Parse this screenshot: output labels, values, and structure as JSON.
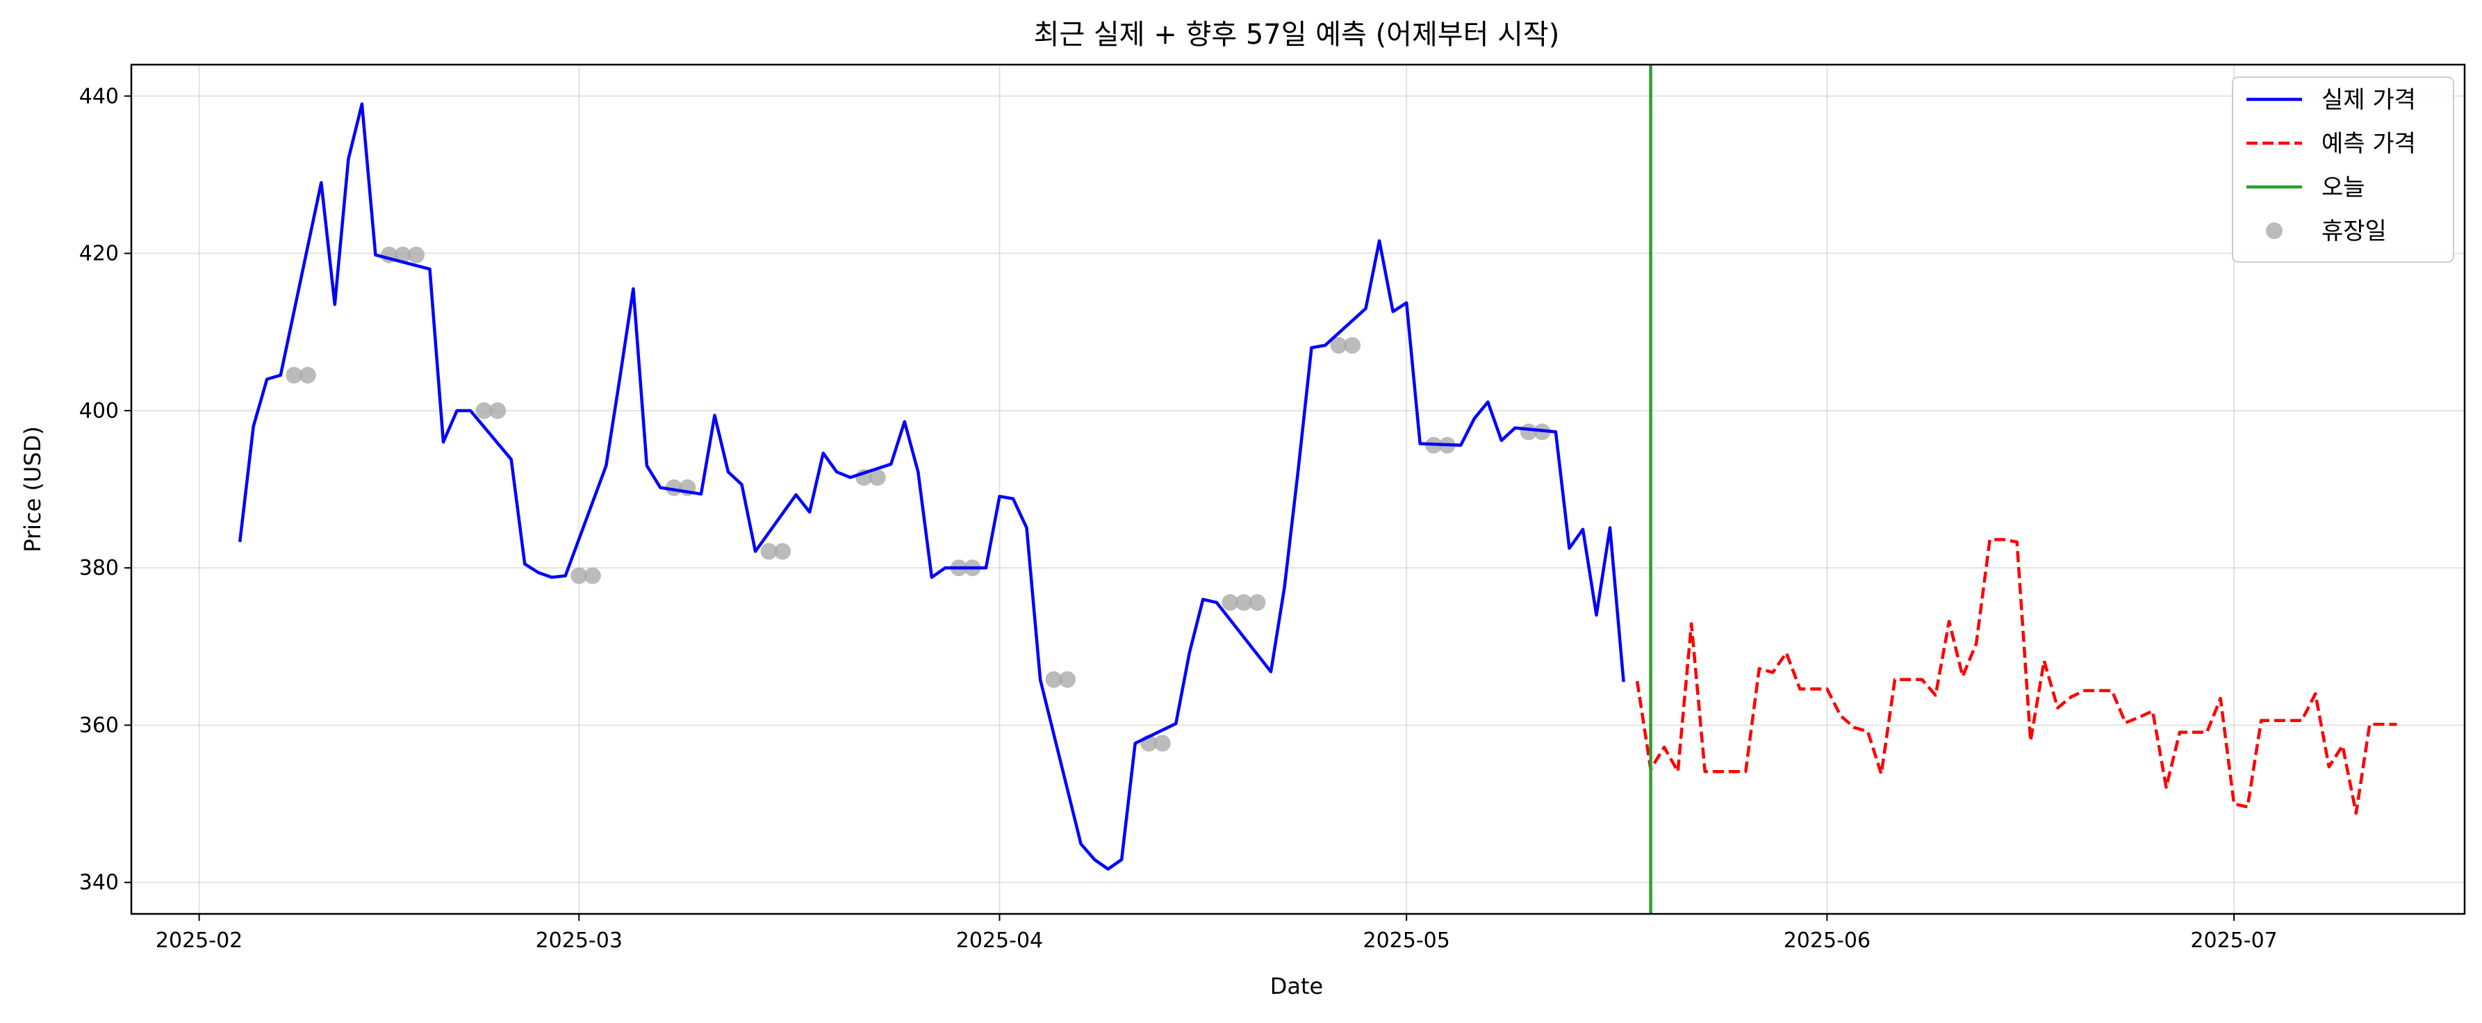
{
  "chart_data": {
    "type": "line",
    "title": "최근 실제 + 향후 57일 예측 (어제부터 시작)",
    "xlabel": "Date",
    "ylabel": "Price (USD)",
    "x_ticks": [
      "2025-02",
      "2025-03",
      "2025-04",
      "2025-05",
      "2025-06",
      "2025-07"
    ],
    "y_ticks": [
      340,
      360,
      380,
      400,
      420,
      440
    ],
    "xlim": [
      "2025-01-27",
      "2025-07-18"
    ],
    "ylim": [
      336,
      444
    ],
    "grid": true,
    "legend_position": "top-right",
    "colors": {
      "actual": "#0000ff",
      "forecast": "#ff0000",
      "today": "#2ca02c",
      "holiday": "#aaaaaa"
    },
    "today": "2025-05-19",
    "series": [
      {
        "name": "실제 가격",
        "style": "solid",
        "points": [
          [
            "2025-02-04",
            383.3
          ],
          [
            "2025-02-05",
            398.0
          ],
          [
            "2025-02-06",
            404.0
          ],
          [
            "2025-02-07",
            404.5
          ],
          [
            "2025-02-10",
            429.0
          ],
          [
            "2025-02-11",
            413.5
          ],
          [
            "2025-02-12",
            432.0
          ],
          [
            "2025-02-13",
            439.0
          ],
          [
            "2025-02-14",
            419.8
          ],
          [
            "2025-02-18",
            418.0
          ],
          [
            "2025-02-19",
            396.0
          ],
          [
            "2025-02-20",
            400.0
          ],
          [
            "2025-02-21",
            400.0
          ],
          [
            "2025-02-24",
            393.8
          ],
          [
            "2025-02-25",
            380.5
          ],
          [
            "2025-02-26",
            379.4
          ],
          [
            "2025-02-27",
            378.8
          ],
          [
            "2025-02-28",
            379.0
          ],
          [
            "2025-03-03",
            393.0
          ],
          [
            "2025-03-04",
            404.0
          ],
          [
            "2025-03-05",
            415.5
          ],
          [
            "2025-03-06",
            393.0
          ],
          [
            "2025-03-07",
            390.2
          ],
          [
            "2025-03-10",
            389.4
          ],
          [
            "2025-03-11",
            399.4
          ],
          [
            "2025-03-12",
            392.2
          ],
          [
            "2025-03-13",
            390.6
          ],
          [
            "2025-03-14",
            382.1
          ],
          [
            "2025-03-17",
            389.3
          ],
          [
            "2025-03-18",
            387.1
          ],
          [
            "2025-03-19",
            394.6
          ],
          [
            "2025-03-20",
            392.2
          ],
          [
            "2025-03-21",
            391.5
          ],
          [
            "2025-03-24",
            393.2
          ],
          [
            "2025-03-25",
            398.6
          ],
          [
            "2025-03-26",
            392.2
          ],
          [
            "2025-03-27",
            378.8
          ],
          [
            "2025-03-28",
            380.0
          ],
          [
            "2025-03-31",
            380.0
          ],
          [
            "2025-04-01",
            389.1
          ],
          [
            "2025-04-02",
            388.8
          ],
          [
            "2025-04-03",
            385.1
          ],
          [
            "2025-04-04",
            365.8
          ],
          [
            "2025-04-07",
            344.9
          ],
          [
            "2025-04-08",
            342.9
          ],
          [
            "2025-04-09",
            341.7
          ],
          [
            "2025-04-10",
            342.9
          ],
          [
            "2025-04-11",
            357.7
          ],
          [
            "2025-04-14",
            360.2
          ],
          [
            "2025-04-15",
            369.2
          ],
          [
            "2025-04-16",
            376.0
          ],
          [
            "2025-04-17",
            375.6
          ],
          [
            "2025-04-21",
            366.8
          ],
          [
            "2025-04-22",
            377.5
          ],
          [
            "2025-04-23",
            392.2
          ],
          [
            "2025-04-24",
            408.0
          ],
          [
            "2025-04-25",
            408.3
          ],
          [
            "2025-04-28",
            413.0
          ],
          [
            "2025-04-29",
            421.6
          ],
          [
            "2025-04-30",
            412.6
          ],
          [
            "2025-05-01",
            413.7
          ],
          [
            "2025-05-02",
            395.8
          ],
          [
            "2025-05-05",
            395.6
          ],
          [
            "2025-05-06",
            399.0
          ],
          [
            "2025-05-07",
            401.1
          ],
          [
            "2025-05-08",
            396.2
          ],
          [
            "2025-05-09",
            397.8
          ],
          [
            "2025-05-12",
            397.3
          ],
          [
            "2025-05-13",
            382.5
          ],
          [
            "2025-05-14",
            384.9
          ],
          [
            "2025-05-15",
            374.0
          ],
          [
            "2025-05-16",
            385.1
          ],
          [
            "2025-05-17",
            365.5
          ]
        ]
      },
      {
        "name": "예측 가격",
        "style": "dashed",
        "points": [
          [
            "2025-05-18",
            365.6
          ],
          [
            "2025-05-19",
            354.4
          ],
          [
            "2025-05-20",
            357.2
          ],
          [
            "2025-05-21",
            354.1
          ],
          [
            "2025-05-22",
            372.9
          ],
          [
            "2025-05-23",
            354.1
          ],
          [
            "2025-05-24",
            354.1
          ],
          [
            "2025-05-25",
            354.1
          ],
          [
            "2025-05-26",
            354.1
          ],
          [
            "2025-05-27",
            367.2
          ],
          [
            "2025-05-28",
            366.7
          ],
          [
            "2025-05-29",
            369.2
          ],
          [
            "2025-05-30",
            364.6
          ],
          [
            "2025-05-31",
            364.6
          ],
          [
            "2025-06-01",
            364.6
          ],
          [
            "2025-06-02",
            361.2
          ],
          [
            "2025-06-03",
            359.7
          ],
          [
            "2025-06-04",
            359.2
          ],
          [
            "2025-06-05",
            353.8
          ],
          [
            "2025-06-06",
            365.8
          ],
          [
            "2025-06-07",
            365.8
          ],
          [
            "2025-06-08",
            365.8
          ],
          [
            "2025-06-09",
            363.8
          ],
          [
            "2025-06-10",
            373.2
          ],
          [
            "2025-06-11",
            366.2
          ],
          [
            "2025-06-12",
            370.4
          ],
          [
            "2025-06-13",
            383.6
          ],
          [
            "2025-06-14",
            383.6
          ],
          [
            "2025-06-15",
            383.3
          ],
          [
            "2025-06-16",
            358.0
          ],
          [
            "2025-06-17",
            368.2
          ],
          [
            "2025-06-18",
            362.2
          ],
          [
            "2025-06-19",
            363.6
          ],
          [
            "2025-06-20",
            364.4
          ],
          [
            "2025-06-21",
            364.4
          ],
          [
            "2025-06-22",
            364.4
          ],
          [
            "2025-06-23",
            360.3
          ],
          [
            "2025-06-24",
            361.0
          ],
          [
            "2025-06-25",
            361.8
          ],
          [
            "2025-06-26",
            352.1
          ],
          [
            "2025-06-27",
            359.1
          ],
          [
            "2025-06-28",
            359.1
          ],
          [
            "2025-06-29",
            359.1
          ],
          [
            "2025-06-30",
            363.4
          ],
          [
            "2025-07-01",
            350.0
          ],
          [
            "2025-07-02",
            349.6
          ],
          [
            "2025-07-03",
            360.6
          ],
          [
            "2025-07-04",
            360.6
          ],
          [
            "2025-07-05",
            360.6
          ],
          [
            "2025-07-06",
            360.6
          ],
          [
            "2025-07-07",
            364.0
          ],
          [
            "2025-07-08",
            354.7
          ],
          [
            "2025-07-09",
            357.4
          ],
          [
            "2025-07-10",
            348.8
          ],
          [
            "2025-07-11",
            360.1
          ],
          [
            "2025-07-12",
            360.1
          ],
          [
            "2025-07-13",
            360.1
          ]
        ]
      },
      {
        "name": "오늘",
        "style": "vertical-line",
        "x": "2025-05-19"
      },
      {
        "name": "휴장일",
        "style": "markers",
        "points": [
          [
            "2025-02-08",
            404.5
          ],
          [
            "2025-02-09",
            404.5
          ],
          [
            "2025-02-15",
            419.8
          ],
          [
            "2025-02-16",
            419.8
          ],
          [
            "2025-02-17",
            419.8
          ],
          [
            "2025-02-22",
            400.0
          ],
          [
            "2025-02-23",
            400.0
          ],
          [
            "2025-03-01",
            379.0
          ],
          [
            "2025-03-02",
            379.0
          ],
          [
            "2025-03-08",
            390.2
          ],
          [
            "2025-03-09",
            390.2
          ],
          [
            "2025-03-15",
            382.1
          ],
          [
            "2025-03-16",
            382.1
          ],
          [
            "2025-03-22",
            391.5
          ],
          [
            "2025-03-23",
            391.5
          ],
          [
            "2025-03-29",
            380.0
          ],
          [
            "2025-03-30",
            380.0
          ],
          [
            "2025-04-05",
            365.8
          ],
          [
            "2025-04-06",
            365.8
          ],
          [
            "2025-04-12",
            357.7
          ],
          [
            "2025-04-13",
            357.7
          ],
          [
            "2025-04-18",
            375.6
          ],
          [
            "2025-04-19",
            375.6
          ],
          [
            "2025-04-20",
            375.6
          ],
          [
            "2025-04-26",
            408.3
          ],
          [
            "2025-04-27",
            408.3
          ],
          [
            "2025-05-03",
            395.6
          ],
          [
            "2025-05-04",
            395.6
          ],
          [
            "2025-05-10",
            397.3
          ],
          [
            "2025-05-11",
            397.3
          ]
        ]
      }
    ]
  }
}
